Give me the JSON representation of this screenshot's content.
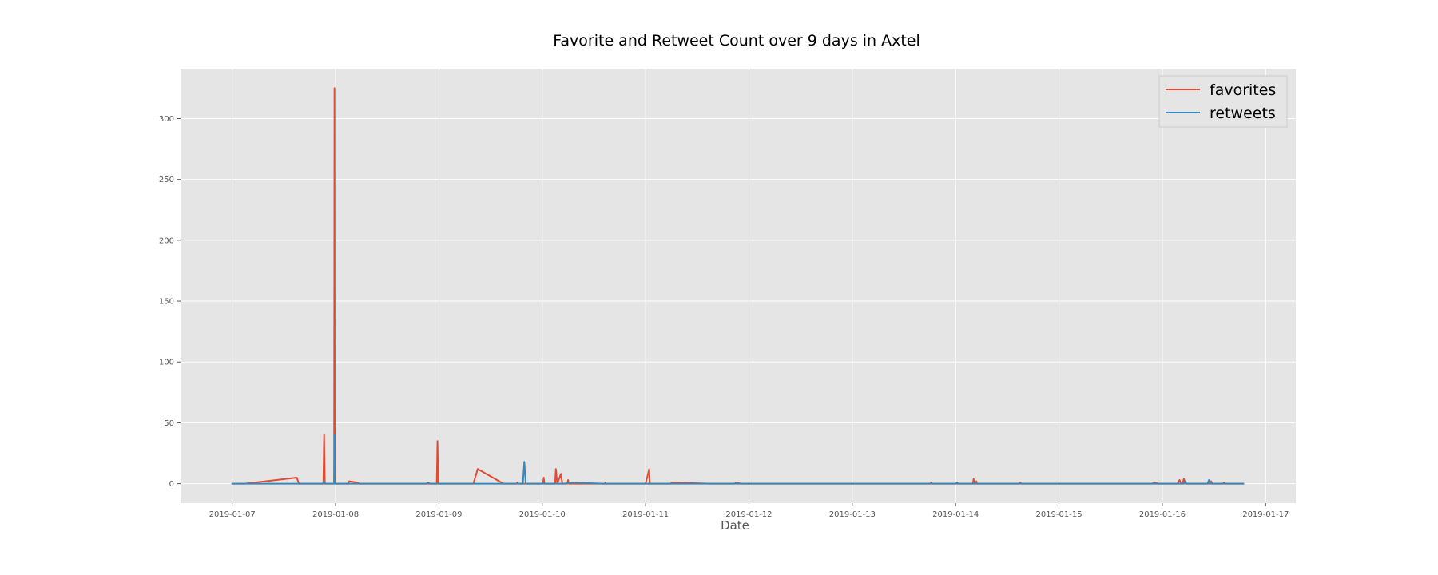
{
  "chart_data": {
    "type": "line",
    "title": "Favorite and Retweet Count over 9 days in  Axtel",
    "xlabel": "Date",
    "ylabel": "",
    "x_unit": "date",
    "xlim": [
      "2019-01-06 12:00",
      "2019-01-17 07:00"
    ],
    "ylim": [
      -16,
      341
    ],
    "x_ticks": [
      "2019-01-07",
      "2019-01-08",
      "2019-01-09",
      "2019-01-10",
      "2019-01-11",
      "2019-01-12",
      "2019-01-13",
      "2019-01-14",
      "2019-01-15",
      "2019-01-16",
      "2019-01-17"
    ],
    "y_ticks": [
      0,
      50,
      100,
      150,
      200,
      250,
      300
    ],
    "grid": true,
    "legend_position": "top-right",
    "colors": {
      "background": "#E5E5E5",
      "grid": "#FFFFFF",
      "favorites": "#E24A33",
      "retweets": "#348ABD"
    },
    "series": [
      {
        "name": "favorites",
        "color": "#E24A33",
        "points": [
          [
            "2019-01-06 23:50",
            0
          ],
          [
            "2019-01-07 03:00",
            0
          ],
          [
            "2019-01-07 15:00",
            5
          ],
          [
            "2019-01-07 15:30",
            0
          ],
          [
            "2019-01-07 21:00",
            0
          ],
          [
            "2019-01-07 21:10",
            0
          ],
          [
            "2019-01-07 21:20",
            40
          ],
          [
            "2019-01-07 21:30",
            0
          ],
          [
            "2019-01-07 23:40",
            0
          ],
          [
            "2019-01-07 23:45",
            325
          ],
          [
            "2019-01-07 23:50",
            0
          ],
          [
            "2019-01-08 03:00",
            0
          ],
          [
            "2019-01-08 03:10",
            2
          ],
          [
            "2019-01-08 05:00",
            1
          ],
          [
            "2019-01-08 05:30",
            0
          ],
          [
            "2019-01-08 23:30",
            0
          ],
          [
            "2019-01-08 23:40",
            35
          ],
          [
            "2019-01-08 23:50",
            0
          ],
          [
            "2019-01-09 08:00",
            0
          ],
          [
            "2019-01-09 09:00",
            12
          ],
          [
            "2019-01-09 15:00",
            0
          ],
          [
            "2019-01-09 18:00",
            0
          ],
          [
            "2019-01-09 18:10",
            1
          ],
          [
            "2019-01-09 18:20",
            0
          ],
          [
            "2019-01-10 00:10",
            0
          ],
          [
            "2019-01-10 00:20",
            5
          ],
          [
            "2019-01-10 00:30",
            0
          ],
          [
            "2019-01-10 03:00",
            0
          ],
          [
            "2019-01-10 03:10",
            12
          ],
          [
            "2019-01-10 03:30",
            0
          ],
          [
            "2019-01-10 04:20",
            8
          ],
          [
            "2019-01-10 04:40",
            0
          ],
          [
            "2019-01-10 05:50",
            0
          ],
          [
            "2019-01-10 06:00",
            3
          ],
          [
            "2019-01-10 06:10",
            0
          ],
          [
            "2019-01-10 14:30",
            0
          ],
          [
            "2019-01-10 14:40",
            1
          ],
          [
            "2019-01-10 14:50",
            0
          ],
          [
            "2019-01-11 00:00",
            0
          ],
          [
            "2019-01-11 00:30",
            7
          ],
          [
            "2019-01-11 00:50",
            12
          ],
          [
            "2019-01-11 01:00",
            0
          ],
          [
            "2019-01-11 05:50",
            0
          ],
          [
            "2019-01-11 06:00",
            1
          ],
          [
            "2019-01-11 15:00",
            0
          ],
          [
            "2019-01-11 20:30",
            0
          ],
          [
            "2019-01-11 21:30",
            1
          ],
          [
            "2019-01-11 22:00",
            0
          ],
          [
            "2019-01-13 18:00",
            0
          ],
          [
            "2019-01-13 18:20",
            1
          ],
          [
            "2019-01-13 18:40",
            0
          ],
          [
            "2019-01-14 04:00",
            0
          ],
          [
            "2019-01-14 04:10",
            4
          ],
          [
            "2019-01-14 04:20",
            0
          ],
          [
            "2019-01-14 04:40",
            0
          ],
          [
            "2019-01-14 04:50",
            2
          ],
          [
            "2019-01-14 05:00",
            0
          ],
          [
            "2019-01-14 14:40",
            0
          ],
          [
            "2019-01-14 15:00",
            1
          ],
          [
            "2019-01-14 15:20",
            0
          ],
          [
            "2019-01-15 21:30",
            0
          ],
          [
            "2019-01-15 22:30",
            1
          ],
          [
            "2019-01-15 23:00",
            0
          ],
          [
            "2019-01-16 03:30",
            0
          ],
          [
            "2019-01-16 04:00",
            3
          ],
          [
            "2019-01-16 04:20",
            0
          ],
          [
            "2019-01-16 04:40",
            0
          ],
          [
            "2019-01-16 05:00",
            4
          ],
          [
            "2019-01-16 05:20",
            0
          ],
          [
            "2019-01-16 11:00",
            0
          ],
          [
            "2019-01-16 11:20",
            2
          ],
          [
            "2019-01-16 11:40",
            0
          ],
          [
            "2019-01-16 14:00",
            0
          ],
          [
            "2019-01-16 14:20",
            1
          ],
          [
            "2019-01-16 14:40",
            0
          ],
          [
            "2019-01-16 19:00",
            0
          ]
        ]
      },
      {
        "name": "retweets",
        "color": "#348ABD",
        "points": [
          [
            "2019-01-06 23:50",
            0
          ],
          [
            "2019-01-07 21:00",
            0
          ],
          [
            "2019-01-07 21:20",
            2
          ],
          [
            "2019-01-07 21:40",
            0
          ],
          [
            "2019-01-07 23:40",
            0
          ],
          [
            "2019-01-07 23:45",
            40
          ],
          [
            "2019-01-07 23:50",
            0
          ],
          [
            "2019-01-08 21:00",
            0
          ],
          [
            "2019-01-08 21:30",
            1
          ],
          [
            "2019-01-08 22:00",
            0
          ],
          [
            "2019-01-09 19:30",
            0
          ],
          [
            "2019-01-09 19:50",
            18
          ],
          [
            "2019-01-09 20:10",
            0
          ],
          [
            "2019-01-10 05:00",
            0
          ],
          [
            "2019-01-10 07:00",
            1
          ],
          [
            "2019-01-10 14:00",
            0
          ],
          [
            "2019-01-13 23:00",
            0
          ],
          [
            "2019-01-14 00:00",
            0
          ],
          [
            "2019-01-14 00:20",
            1
          ],
          [
            "2019-01-14 00:40",
            0
          ],
          [
            "2019-01-16 05:00",
            0
          ],
          [
            "2019-01-16 05:20",
            2
          ],
          [
            "2019-01-16 05:40",
            0
          ],
          [
            "2019-01-16 10:30",
            0
          ],
          [
            "2019-01-16 10:50",
            3
          ],
          [
            "2019-01-16 11:10",
            0
          ],
          [
            "2019-01-16 19:00",
            0
          ]
        ]
      }
    ]
  }
}
